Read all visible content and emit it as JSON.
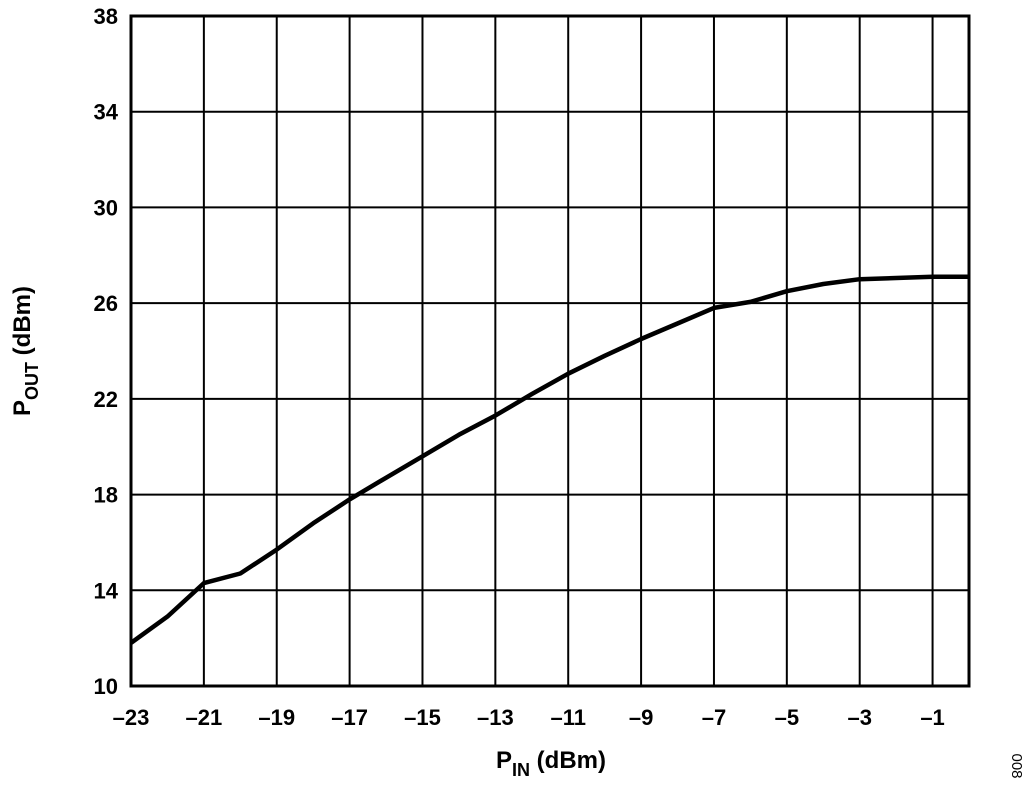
{
  "chart_data": {
    "type": "line",
    "title": "",
    "xlabel": {
      "main": "P",
      "sub": "IN",
      "unit": " (dBm)"
    },
    "ylabel": {
      "main": "P",
      "sub": "OUT",
      "unit": " (dBm)"
    },
    "xlim": [
      -23,
      0
    ],
    "ylim": [
      10,
      38
    ],
    "x_ticks": [
      -23,
      -21,
      -19,
      -17,
      -15,
      -13,
      -11,
      -9,
      -7,
      -5,
      -3,
      -1
    ],
    "x_tick_labels": [
      "–23",
      "–21",
      "–19",
      "–17",
      "–15",
      "–13",
      "–11",
      "–9",
      "–7",
      "–5",
      "–3",
      "–1"
    ],
    "y_ticks": [
      10,
      14,
      18,
      22,
      26,
      30,
      34,
      38
    ],
    "y_tick_labels": [
      "10",
      "14",
      "18",
      "22",
      "26",
      "30",
      "34",
      "38"
    ],
    "grid": true,
    "legend": "none",
    "series": [
      {
        "x": [
          -23,
          -22,
          -21,
          -20,
          -19,
          -18,
          -17,
          -16,
          -15,
          -14,
          -13,
          -12,
          -11,
          -10,
          -9,
          -8,
          -7,
          -6,
          -5,
          -4,
          -3,
          -2,
          -1,
          0
        ],
        "y": [
          11.8,
          12.9,
          14.3,
          14.7,
          15.7,
          16.8,
          17.8,
          18.7,
          19.6,
          20.5,
          21.3,
          22.2,
          23.05,
          23.8,
          24.5,
          25.15,
          25.8,
          26.05,
          26.5,
          26.8,
          27.0,
          27.05,
          27.1,
          27.1
        ]
      }
    ]
  },
  "figure_id": "008"
}
